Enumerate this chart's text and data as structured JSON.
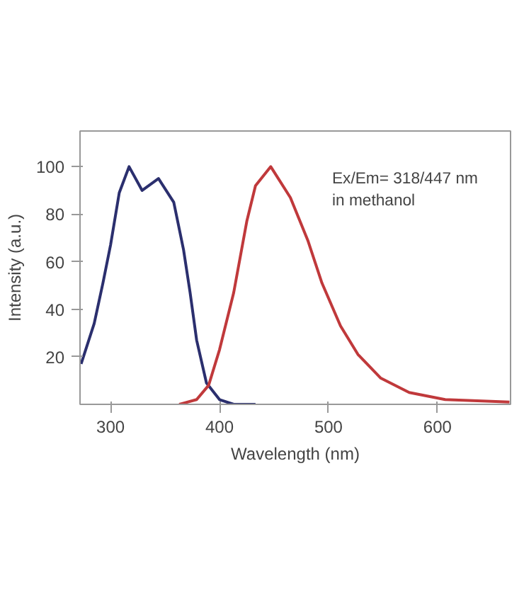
{
  "chart_data": {
    "type": "line",
    "xlabel": "Wavelength (nm)",
    "ylabel": "Intensity (a.u.)",
    "xlim": [
      272,
      667
    ],
    "ylim": [
      0,
      115
    ],
    "xticks": [
      300,
      400,
      500,
      600
    ],
    "yticks": [
      20,
      40,
      60,
      80,
      100
    ],
    "grid": false,
    "marker": "none",
    "line_style": "solid",
    "annotations": [
      "Ex/Em= 318/447 nm\nin methanol"
    ],
    "series": [
      {
        "color": "#2b2f6e",
        "x": [
          273,
          285,
          293,
          300,
          308,
          317,
          329,
          344,
          358,
          367,
          373,
          379,
          388,
          400,
          413,
          433
        ],
        "values": [
          17,
          34,
          51,
          67,
          89,
          100,
          90,
          95,
          85,
          65,
          47,
          27,
          9,
          2,
          0,
          0
        ]
      },
      {
        "color": "#c0393b",
        "x": [
          363,
          379,
          390,
          400,
          413,
          425,
          433,
          447,
          465,
          481,
          494,
          511,
          527,
          548,
          574,
          607,
          666
        ],
        "values": [
          0,
          2,
          8,
          23,
          47,
          77,
          92,
          100,
          87,
          69,
          51,
          33,
          21,
          11,
          5,
          2,
          1
        ]
      }
    ]
  }
}
